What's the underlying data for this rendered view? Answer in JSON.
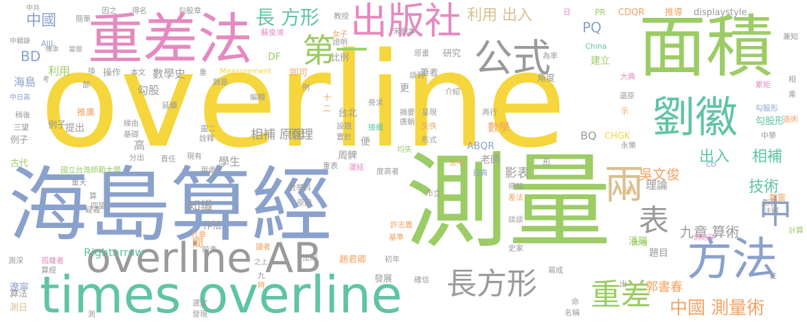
{
  "colors": {
    "yellow": "#f5d63c",
    "green": "#9ccc65",
    "teal": "#5fc4a4",
    "blue": "#8aa1cc",
    "pink": "#e58ac0",
    "orange": "#f4a261",
    "gray": "#9a9a9a",
    "tan": "#d9bf8f"
  },
  "words": [
    "overline",
    "測量",
    "海島算經",
    "面積",
    "重差法",
    "times overline",
    "overline AB",
    "方法",
    "劉徽",
    "出版社",
    "公式",
    "第一",
    "兩",
    "中",
    "表",
    "長方形",
    "重差",
    "中國 測量術",
    "長 方形",
    "利用 出入",
    "中國",
    "技術",
    "相補",
    "出入",
    "九章 算術",
    "吳文俊",
    "郭書春",
    "影表",
    "PQ",
    "BD",
    "利用",
    "海島",
    "原理",
    "知識",
    "作法",
    "數學",
    "數學史",
    "相補 原理",
    "Rightarrow",
    "間",
    "老師",
    "學生",
    "潘陽",
    "題目",
    "理論",
    "BQ",
    "CHGK",
    "ABQR",
    "displaystyle",
    "CDQR",
    "推導",
    "勾股形",
    "比例",
    "研究",
    "建立",
    "DF",
    "即可",
    "提出",
    "推廣",
    "例子",
    "古代",
    "周髀",
    "筆者",
    "更",
    "高",
    "便",
    "台北",
    "角度",
    "三望",
    "戴震",
    "遼寧",
    "算法",
    "測日",
    "稍後",
    "趙君卿",
    "發展",
    "確信",
    "寫成",
    "重表",
    "勾股",
    "China",
    "Measurement",
    "大典",
    "永樂",
    "介紹",
    "宋刻本",
    "蘇俊鴻",
    "女子",
    "證明",
    "原書",
    "為率",
    "簡單",
    "中共",
    "得名",
    "因之",
    "勾股章",
    "教授",
    "PR",
    "中輯錄",
    "傳本",
    "AJIL",
    "當做",
    "換",
    "操作",
    "本文",
    "重",
    "題意",
    "編輯",
    "延續",
    "中日高",
    "考",
    "部",
    "緣由",
    "基礎",
    "詮釋",
    "圖二",
    "現有",
    "分出",
    "責任",
    "用處",
    "國立台灣師範大學",
    "之上",
    "法則",
    "前表",
    "讀者",
    "九章",
    "初年",
    "算經",
    "孤離者",
    "測深",
    "疑義",
    "四望",
    "量天",
    "九",
    "時",
    "選定",
    "發現",
    "測",
    "許志農",
    "基準",
    "原圖",
    "市立",
    "大地",
    "計算",
    "注釋",
    "影長",
    "必",
    "得知",
    "差法",
    "談談",
    "史家",
    "名稱",
    "命",
    "出",
    "注",
    "日",
    "還原",
    "勾股形",
    "累矩",
    "示",
    "造術",
    "中學",
    "CD",
    "度高者",
    "運結",
    "數學科",
    "水平",
    "形式",
    "均失",
    "失佚",
    "接續",
    "設題",
    "置於",
    "摘要",
    "唐朝",
    "再行",
    "呈現",
    "旁求",
    "談到",
    "十",
    "二",
    "例",
    "測絕深",
    "日高",
    "形",
    "兼知",
    "相",
    "乘",
    "例子",
    "算"
  ]
}
